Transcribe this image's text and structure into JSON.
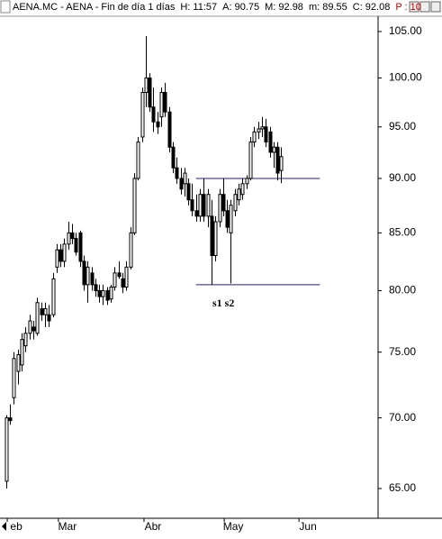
{
  "chart_data": {
    "type": "candlestick",
    "title": "AENA.MC - AENA - Fin de día 1 días",
    "header_fields": [
      "H: 11:57",
      "A: 90.75",
      "M: 92.98",
      "m: 89.55",
      "C: 92.08",
      "P : 10"
    ],
    "log_scale": true,
    "ylim": [
      63,
      106.7
    ],
    "yticks": [
      {
        "value": 65,
        "label": "65.00"
      },
      {
        "value": 70,
        "label": "70.00"
      },
      {
        "value": 75,
        "label": "75.00"
      },
      {
        "value": 80,
        "label": "80.00"
      },
      {
        "value": 85,
        "label": "85.00"
      },
      {
        "value": 90,
        "label": "90.00"
      },
      {
        "value": 95,
        "label": "95.00"
      },
      {
        "value": 100,
        "label": "100.00"
      },
      {
        "value": 105,
        "label": "105.00"
      }
    ],
    "xlim": [
      -1.6,
      96
    ],
    "xticks": [
      {
        "value": 2.6,
        "label": "eb"
      },
      {
        "value": 15.8,
        "label": "Mar"
      },
      {
        "value": 37.9,
        "label": "Abr"
      },
      {
        "value": 58.6,
        "label": "May"
      },
      {
        "value": 77.9,
        "label": "Jun"
      }
    ],
    "x": [
      0,
      1,
      2,
      3,
      4,
      5,
      6,
      7,
      8,
      9,
      10,
      11,
      12,
      13,
      14,
      15,
      16,
      17,
      18,
      19,
      20,
      21,
      22,
      23,
      24,
      25,
      26,
      27,
      28,
      29,
      30,
      31,
      32,
      33,
      34,
      35,
      36,
      37,
      38,
      39,
      40,
      41,
      42,
      43,
      44,
      45,
      46,
      47,
      48,
      49,
      50,
      51,
      52,
      53,
      54,
      55,
      56,
      57,
      58,
      59,
      60,
      61,
      62,
      63,
      64,
      65,
      66,
      67,
      68,
      69,
      70,
      71
    ],
    "open": [
      65.5,
      70,
      71.5,
      73.5,
      74,
      75.5,
      76.5,
      77,
      76.5,
      78.5,
      78,
      78,
      78,
      82,
      83.5,
      82.5,
      84,
      85,
      84.5,
      85,
      82.5,
      80.5,
      81.5,
      80.5,
      80,
      79.5,
      80,
      79.3,
      80.3,
      81.5,
      81,
      80.3,
      82,
      85,
      90,
      94,
      98.5,
      100,
      97,
      95.5,
      96,
      98.5,
      96.5,
      93,
      91,
      90,
      89.5,
      89.5,
      88,
      87,
      86.5,
      88.5,
      86.5,
      86.5,
      83,
      86,
      88.5,
      87,
      85,
      87,
      88,
      88.5,
      89.5,
      90,
      93.5,
      94.5,
      94.8,
      95,
      94.5,
      92.5,
      93,
      90.75
    ],
    "high": [
      70.2,
      71,
      75,
      75.2,
      76.5,
      77,
      78,
      77.5,
      79.4,
      79,
      79,
      78.8,
      81.5,
      84,
      84,
      84.5,
      86,
      85.8,
      85,
      85.2,
      83,
      82.5,
      82,
      81,
      80.5,
      80.5,
      80.3,
      80.5,
      82,
      82.5,
      81.5,
      82.5,
      85.5,
      90.5,
      94,
      99,
      104.5,
      100.5,
      99,
      96.5,
      99,
      99.5,
      97,
      93.5,
      92,
      91,
      91,
      90,
      89.5,
      88.5,
      89,
      90,
      89,
      88,
      86.5,
      89,
      90,
      88,
      88,
      89,
      89.5,
      90,
      90.3,
      94,
      95,
      95.5,
      96,
      95.8,
      95,
      93.5,
      93.5,
      92.98
    ],
    "low": [
      65,
      69.5,
      71,
      72.5,
      73.5,
      75,
      76,
      76,
      76.3,
      77.5,
      77,
      77,
      77.8,
      81.5,
      82,
      82,
      83.5,
      84,
      83,
      82,
      80,
      79,
      80,
      79.5,
      79,
      78.8,
      78.8,
      79,
      80,
      81,
      79.8,
      80,
      81.8,
      84.8,
      89.8,
      93.5,
      97,
      96.5,
      94.5,
      94.3,
      95,
      96,
      92.5,
      90.5,
      89.5,
      88.5,
      88.3,
      87.5,
      86.5,
      86,
      86,
      86,
      85.5,
      80.5,
      82.5,
      85.5,
      86.5,
      85,
      80.6,
      86.5,
      87.5,
      88,
      89,
      89.8,
      93,
      93.8,
      94,
      93,
      92,
      91,
      89.8,
      89.55
    ],
    "close": [
      70,
      69.8,
      74.5,
      74.8,
      76,
      76.5,
      77.5,
      76.7,
      79,
      78,
      78.5,
      77.5,
      81,
      83.5,
      82.5,
      84,
      85,
      84.5,
      83.3,
      82.5,
      80.5,
      82,
      80.5,
      80,
      79.5,
      80,
      79.2,
      80.3,
      81.5,
      81.2,
      80.3,
      82,
      85,
      90,
      93.5,
      98.5,
      100,
      97,
      95.5,
      95,
      98.5,
      96.5,
      93,
      91,
      90,
      89,
      90.5,
      88,
      87,
      86.5,
      88.5,
      86.5,
      88.5,
      83,
      86,
      88.5,
      87,
      85.5,
      87.5,
      88.5,
      89,
      89.5,
      90,
      93.5,
      94.5,
      94.8,
      95,
      93.5,
      92.5,
      93,
      90.5,
      92.08
    ],
    "hlines": [
      {
        "value": 90,
        "x": [
          49,
          81
        ],
        "color": "#1c1ca8"
      },
      {
        "value": 80.5,
        "x": [
          49,
          81
        ],
        "color": "#1c1ca8"
      }
    ],
    "annotation": "s1 s2"
  }
}
